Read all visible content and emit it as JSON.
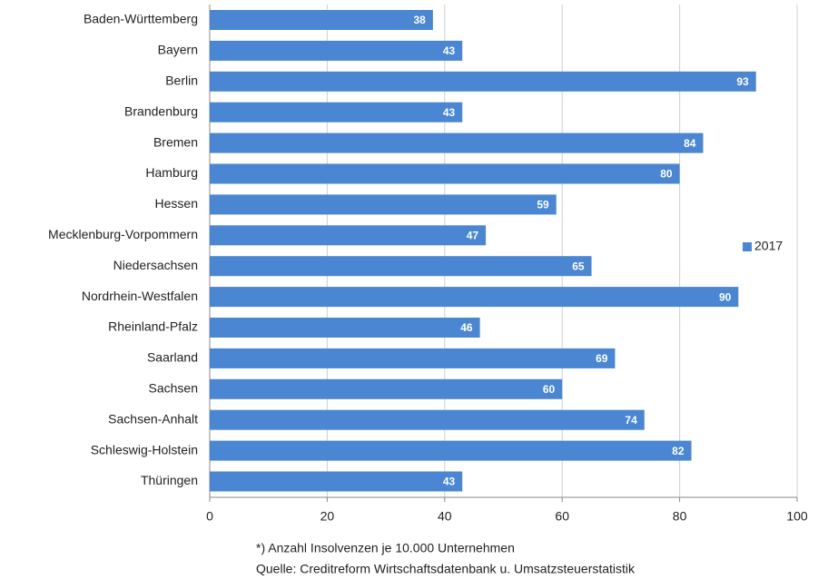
{
  "chart_data": {
    "type": "bar",
    "orientation": "horizontal",
    "categories": [
      "Baden-Württemberg",
      "Bayern",
      "Berlin",
      "Brandenburg",
      "Bremen",
      "Hamburg",
      "Hessen",
      "Mecklenburg-Vorpommern",
      "Niedersachsen",
      "Nordrhein-Westfalen",
      "Rheinland-Pfalz",
      "Saarland",
      "Sachsen",
      "Sachsen-Anhalt",
      "Schleswig-Holstein",
      "Thüringen"
    ],
    "series": [
      {
        "name": "2017",
        "color": "#4a86d1",
        "values": [
          38,
          43,
          93,
          43,
          84,
          80,
          59,
          47,
          65,
          90,
          46,
          69,
          60,
          74,
          82,
          43
        ]
      }
    ],
    "xlim": [
      0,
      100
    ],
    "xticks": [
      0,
      20,
      40,
      60,
      80,
      100
    ],
    "grid": true,
    "legend": "right",
    "notes": [
      "*) Anzahl Insolvenzen je 10.000 Unternehmen",
      "Quelle: Creditreform Wirtschaftsdatenbank u. Umsatzsteuerstatistik"
    ]
  }
}
